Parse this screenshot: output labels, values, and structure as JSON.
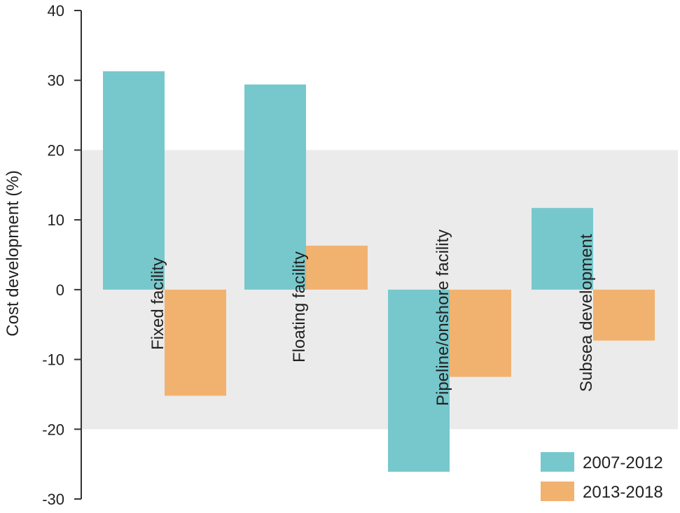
{
  "chart_data": {
    "type": "bar",
    "title": "",
    "xlabel": "",
    "ylabel": "Cost development (%)",
    "ylim": [
      -30,
      40
    ],
    "yticks": [
      40,
      30,
      20,
      10,
      0,
      -10,
      -20,
      -30
    ],
    "band": [
      -20,
      20
    ],
    "grid": false,
    "legend_position": "bottom-right",
    "categories": [
      "Fixed facility",
      "Floating facility",
      "Pipeline/onshore facility",
      "Subsea development"
    ],
    "series": [
      {
        "name": "2007-2012",
        "color": "#77c8cc",
        "values": [
          31.3,
          29.4,
          -26.1,
          11.7
        ]
      },
      {
        "name": "2013-2018",
        "color": "#f2b26f",
        "values": [
          -15.2,
          6.3,
          -12.5,
          -7.3
        ]
      }
    ],
    "band_color": "#ebebeb",
    "axis_color": "#333333"
  }
}
